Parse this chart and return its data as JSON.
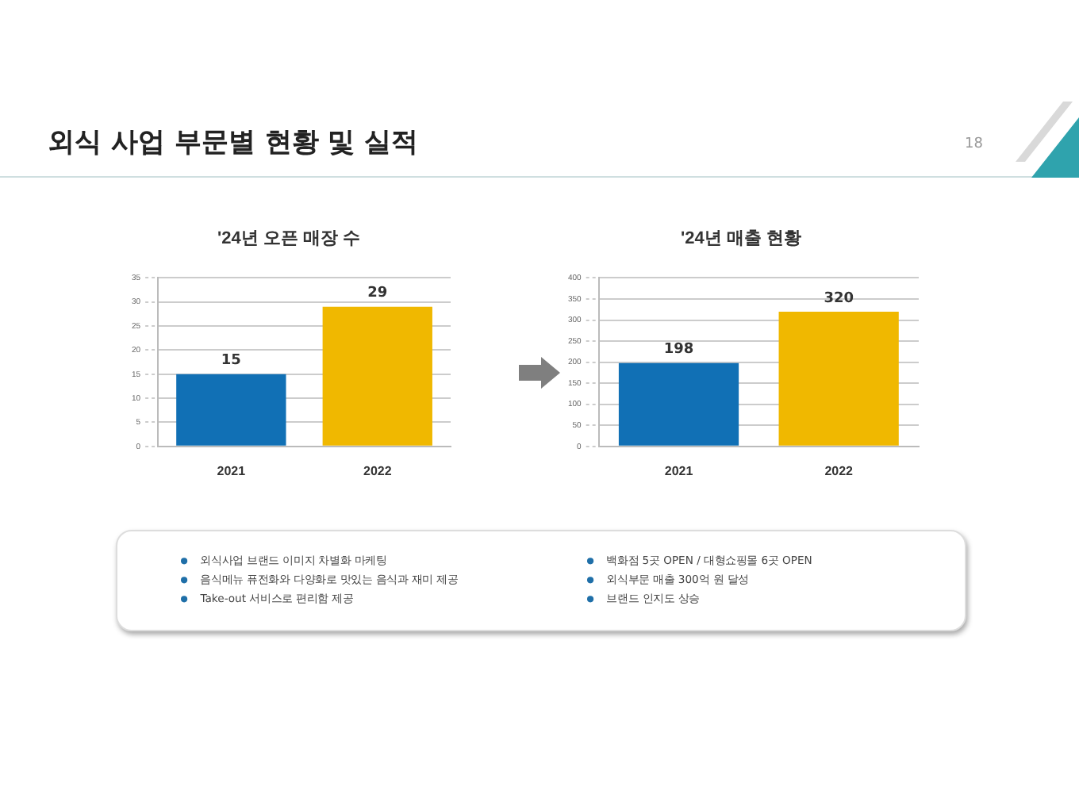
{
  "chart_data": [
    {
      "type": "bar",
      "title": "'24년 오픈 매장 수",
      "categories": [
        "2021",
        "2022"
      ],
      "values": [
        15,
        29
      ],
      "colors": [
        "#1170b5",
        "#f0b800"
      ],
      "ylim": [
        0,
        35
      ],
      "yticks": [
        0,
        5,
        10,
        15,
        20,
        25,
        30,
        35
      ],
      "grid": "y",
      "data_labels": true
    },
    {
      "type": "bar",
      "title": "'24년 매출 현황",
      "categories": [
        "2021",
        "2022"
      ],
      "values": [
        198,
        320
      ],
      "colors": [
        "#1170b5",
        "#f0b800"
      ],
      "ylim": [
        0,
        400
      ],
      "yticks": [
        0,
        50,
        100,
        150,
        200,
        250,
        300,
        350,
        400
      ],
      "grid": "y",
      "data_labels": true
    },
    {
      "type": "other",
      "title": "외식 사업 부문별 현황 및 실적",
      "annotations": [
        "18",
        "외식사업 브랜드 이미지 차별화 마케팅",
        "음식메뉴 퓨전화와 다양화로 맛있는 음식과 재미 제공",
        "Take-out 서비스로 편리함 제공",
        "백화점 5곳 OPEN / 대형쇼핑몰 6곳 OPEN",
        "외식부문 매출 300억 원 달성",
        "브랜드 인지도 상승"
      ]
    }
  ]
}
